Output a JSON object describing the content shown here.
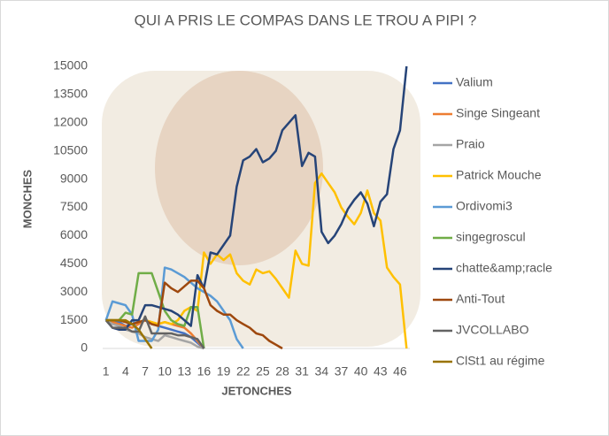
{
  "chart_data": {
    "type": "line",
    "title": "QUI A PRIS LE COMPAS DANS LE TROU A PIPI ?",
    "x_label": "JETONCHES",
    "y_label": "MONCHES",
    "x": [
      1,
      2,
      3,
      4,
      5,
      6,
      7,
      8,
      9,
      10,
      11,
      12,
      13,
      14,
      15,
      16,
      17,
      18,
      19,
      20,
      21,
      22,
      23,
      24,
      25,
      26,
      27,
      28,
      29,
      30,
      31,
      32,
      33,
      34,
      35,
      36,
      37,
      38,
      39,
      40,
      41,
      42,
      43,
      44,
      45,
      46,
      47
    ],
    "xlim": [
      0.5,
      47.5
    ],
    "xticks": [
      1,
      4,
      7,
      10,
      13,
      16,
      19,
      22,
      25,
      28,
      31,
      34,
      37,
      40,
      43,
      46
    ],
    "ylim": [
      0,
      15000
    ],
    "yticks": [
      0,
      1500,
      3000,
      4500,
      6000,
      7500,
      9000,
      10500,
      12000,
      13500,
      15000
    ],
    "legend": "right",
    "series": [
      {
        "name": "Valium",
        "color": "#4472c4",
        "values": [
          1500,
          1500,
          1400,
          1200,
          1300,
          1400,
          1500,
          1300,
          1200,
          1100,
          1000,
          900,
          800,
          600,
          300,
          0,
          null,
          null,
          null,
          null,
          null,
          null,
          null,
          null,
          null,
          null,
          null,
          null,
          null,
          null,
          null,
          null,
          null,
          null,
          null,
          null,
          null,
          null,
          null,
          null,
          null,
          null,
          null,
          null,
          null,
          null,
          null
        ]
      },
      {
        "name": "Singe Singeant",
        "color": "#ed7d31",
        "values": [
          1500,
          1400,
          1300,
          1200,
          1100,
          1300,
          1500,
          1400,
          1300,
          1400,
          1300,
          1200,
          1100,
          800,
          400,
          0,
          null,
          null,
          null,
          null,
          null,
          null,
          null,
          null,
          null,
          null,
          null,
          null,
          null,
          null,
          null,
          null,
          null,
          null,
          null,
          null,
          null,
          null,
          null,
          null,
          null,
          null,
          null,
          null,
          null,
          null,
          null
        ]
      },
      {
        "name": "Praio",
        "color": "#a5a5a5",
        "values": [
          1500,
          1300,
          1200,
          1000,
          900,
          800,
          600,
          500,
          400,
          700,
          600,
          500,
          400,
          300,
          100,
          0,
          null,
          null,
          null,
          null,
          null,
          null,
          null,
          null,
          null,
          null,
          null,
          null,
          null,
          null,
          null,
          null,
          null,
          null,
          null,
          null,
          null,
          null,
          null,
          null,
          null,
          null,
          null,
          null,
          null,
          null,
          null
        ]
      },
      {
        "name": "Patrick Mouche",
        "color": "#ffc000",
        "values": [
          1500,
          1500,
          1500,
          1400,
          1300,
          1400,
          1500,
          1400,
          1300,
          1400,
          1300,
          1500,
          2000,
          2200,
          2000,
          5100,
          4500,
          5000,
          4700,
          5000,
          4000,
          3600,
          3400,
          4200,
          4000,
          4100,
          3700,
          3200,
          2700,
          5200,
          4500,
          4400,
          8800,
          9300,
          8800,
          8300,
          7500,
          7000,
          6600,
          7200,
          8400,
          7200,
          6800,
          4300,
          3800,
          3400,
          0
        ]
      },
      {
        "name": "Ordivomi3",
        "color": "#5b9bd5",
        "values": [
          1500,
          2500,
          2400,
          2300,
          1800,
          400,
          400,
          400,
          1000,
          4300,
          4200,
          4000,
          3800,
          3500,
          3200,
          3000,
          2800,
          2500,
          2000,
          1500,
          500,
          0,
          null,
          null,
          null,
          null,
          null,
          null,
          null,
          null,
          null,
          null,
          null,
          null,
          null,
          null,
          null,
          null,
          null,
          null,
          null,
          null,
          null,
          null,
          null,
          null,
          null
        ]
      },
      {
        "name": "singegroscul",
        "color": "#70ad47",
        "values": [
          1500,
          1500,
          1500,
          1900,
          1800,
          4000,
          4000,
          4000,
          3000,
          2000,
          1500,
          1300,
          1200,
          2200,
          2200,
          0,
          null,
          null,
          null,
          null,
          null,
          null,
          null,
          null,
          null,
          null,
          null,
          null,
          null,
          null,
          null,
          null,
          null,
          null,
          null,
          null,
          null,
          null,
          null,
          null,
          null,
          null,
          null,
          null,
          null,
          null,
          null
        ]
      },
      {
        "name": "chatte&amp;racle",
        "color": "#264478",
        "values": [
          1500,
          1100,
          1000,
          1000,
          1500,
          1500,
          2300,
          2300,
          2200,
          2100,
          2000,
          1800,
          1500,
          1200,
          3900,
          3200,
          5100,
          5000,
          5500,
          6000,
          8600,
          10000,
          10200,
          10600,
          9900,
          10100,
          10500,
          11600,
          12000,
          12400,
          9700,
          10400,
          10200,
          6200,
          5600,
          6000,
          6600,
          7400,
          7900,
          8300,
          7700,
          6500,
          7800,
          8200,
          10600,
          11600,
          15000
        ]
      },
      {
        "name": "Anti-Tout",
        "color": "#9e480e",
        "values": [
          1500,
          1500,
          1500,
          1400,
          1300,
          1400,
          1500,
          1300,
          1200,
          3500,
          3200,
          3000,
          3300,
          3600,
          3600,
          3200,
          2300,
          2000,
          1800,
          1800,
          1500,
          1300,
          1100,
          800,
          700,
          400,
          200,
          0,
          null,
          null,
          null,
          null,
          null,
          null,
          null,
          null,
          null,
          null,
          null,
          null,
          null,
          null,
          null,
          null,
          null,
          null,
          null
        ]
      },
      {
        "name": "JVCOLLABO",
        "color": "#636363",
        "values": [
          1500,
          1100,
          1100,
          1100,
          900,
          900,
          1700,
          800,
          800,
          800,
          800,
          700,
          700,
          600,
          500,
          0,
          null,
          null,
          null,
          null,
          null,
          null,
          null,
          null,
          null,
          null,
          null,
          null,
          null,
          null,
          null,
          null,
          null,
          null,
          null,
          null,
          null,
          null,
          null,
          null,
          null,
          null,
          null,
          null,
          null,
          null,
          null
        ]
      },
      {
        "name": "ClSt1 au régime",
        "color": "#997300",
        "values": [
          1500,
          1500,
          1500,
          1500,
          1300,
          1000,
          500,
          0,
          null,
          null,
          null,
          null,
          null,
          null,
          null,
          null,
          null,
          null,
          null,
          null,
          null,
          null,
          null,
          null,
          null,
          null,
          null,
          null,
          null,
          null,
          null,
          null,
          null,
          null,
          null,
          null,
          null,
          null,
          null,
          null,
          null,
          null,
          null,
          null,
          null,
          null,
          null
        ]
      }
    ]
  }
}
